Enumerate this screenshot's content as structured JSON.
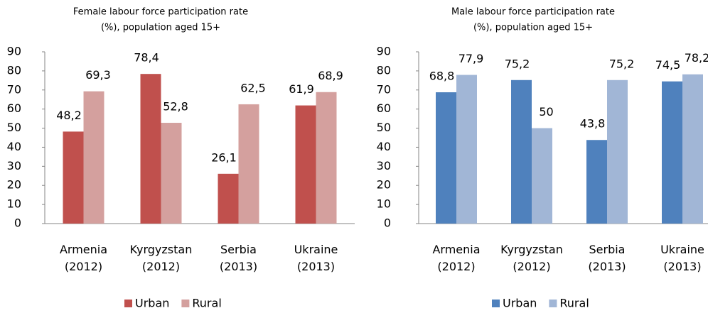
{
  "chart_data": [
    {
      "type": "bar",
      "title": [
        "Female labour force participation rate",
        "(%), population aged 15+"
      ],
      "categories": [
        "Armenia (2012)",
        "Kyrgyzstan (2012)",
        "Serbia (2013)",
        "Ukraine (2013)"
      ],
      "series": [
        {
          "name": "Urban",
          "color": "#c0504d",
          "values": [
            48.2,
            78.4,
            26.1,
            61.9
          ],
          "value_labels": [
            "48,2",
            "78,4",
            "26,1",
            "61,9"
          ]
        },
        {
          "name": "Rural",
          "color": "#d4a09e",
          "values": [
            69.3,
            52.8,
            62.5,
            68.9
          ],
          "value_labels": [
            "69,3",
            "52,8",
            "62,5",
            "68,9"
          ]
        }
      ],
      "ylim": [
        0,
        90
      ],
      "yticks": [
        0,
        10,
        20,
        30,
        40,
        50,
        60,
        70,
        80,
        90
      ],
      "grid": false,
      "legend": "bottom"
    },
    {
      "type": "bar",
      "title": [
        "Male labour force participation rate",
        "(%), population aged 15+"
      ],
      "categories": [
        "Armenia (2012)",
        "Kyrgyzstan (2012)",
        "Serbia (2013)",
        "Ukraine (2013)"
      ],
      "series": [
        {
          "name": "Urban",
          "color": "#4f81bd",
          "values": [
            68.8,
            75.2,
            43.8,
            74.5
          ],
          "value_labels": [
            "68,8",
            "75,2",
            "43,8",
            "74,5"
          ]
        },
        {
          "name": "Rural",
          "color": "#a1b6d6",
          "values": [
            77.9,
            50,
            75.2,
            78.2
          ],
          "value_labels": [
            "77,9",
            "50",
            "75,2",
            "78,2"
          ]
        }
      ],
      "ylim": [
        0,
        90
      ],
      "yticks": [
        0,
        10,
        20,
        30,
        40,
        50,
        60,
        70,
        80,
        90
      ],
      "grid": false,
      "legend": "bottom"
    }
  ]
}
